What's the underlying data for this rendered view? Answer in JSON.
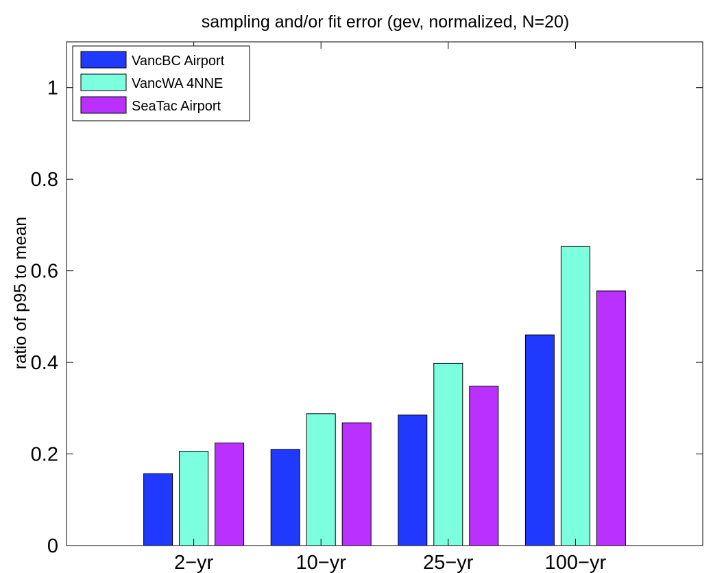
{
  "chart_data": {
    "type": "bar",
    "title": "sampling and/or fit error (gev, normalized, N=20)",
    "xlabel": "",
    "ylabel": "ratio of p95 to mean",
    "categories": [
      "2−yr",
      "10−yr",
      "25−yr",
      "100−yr"
    ],
    "series": [
      {
        "name": "VancBC Airport",
        "color": "#2039ff",
        "values": [
          0.157,
          0.21,
          0.285,
          0.46
        ]
      },
      {
        "name": "VancWA 4NNE",
        "color": "#7cffdf",
        "values": [
          0.206,
          0.288,
          0.398,
          0.653
        ]
      },
      {
        "name": "SeaTac Airport",
        "color": "#b930ff",
        "values": [
          0.224,
          0.268,
          0.348,
          0.556
        ]
      }
    ],
    "ylim": [
      0,
      1.1
    ],
    "yticks": [
      0,
      0.2,
      0.4,
      0.6,
      0.8,
      1
    ],
    "ytick_labels": [
      "0",
      "0.2",
      "0.4",
      "0.6",
      "0.8",
      "1"
    ],
    "legend_position": "top-left",
    "grid": false
  }
}
